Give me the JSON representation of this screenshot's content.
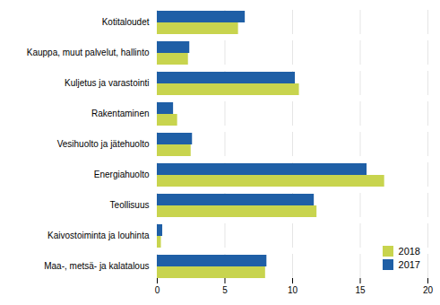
{
  "chart_data": {
    "type": "bar",
    "orientation": "horizontal",
    "categories": [
      "Kotitaloudet",
      "Kauppa, muut palvelut, hallinto",
      "Kuljetus ja varastointi",
      "Rakentaminen",
      "Vesihuolto ja jätehuolto",
      "Energiahuolto",
      "Teollisuus",
      "Kaivostoiminta ja louhinta",
      "Maa-, metsä- ja kalatalous"
    ],
    "series": [
      {
        "name": "2018",
        "color": "#c8d44e",
        "values": [
          6.0,
          2.3,
          10.5,
          1.5,
          2.5,
          16.8,
          11.8,
          0.3,
          8.0
        ]
      },
      {
        "name": "2017",
        "color": "#1f5fa6",
        "values": [
          6.5,
          2.4,
          10.2,
          1.2,
          2.6,
          15.5,
          11.6,
          0.4,
          8.1
        ]
      }
    ],
    "xlim": [
      0,
      20
    ],
    "xticks": [
      0,
      5,
      10,
      15,
      20
    ],
    "grid": true,
    "legend": "lower right"
  }
}
